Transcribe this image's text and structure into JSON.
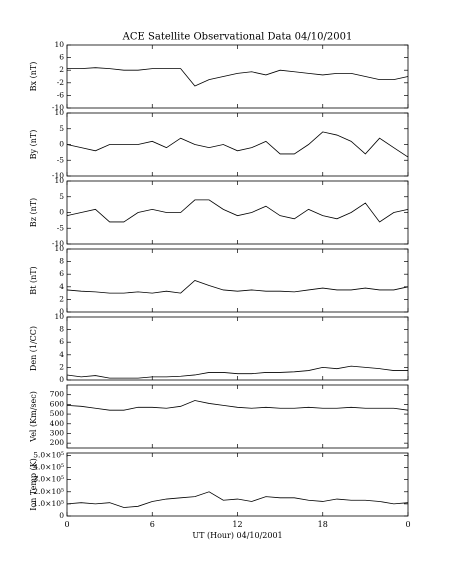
{
  "chart_data": [
    {
      "type": "line",
      "title": "ACE Satellite Observational Data   04/10/2001",
      "ylabel": "Bx (nT)",
      "xlim": [
        0,
        24
      ],
      "ylim": [
        -10,
        10
      ],
      "yticks": [
        -10,
        -6,
        -2,
        2,
        6,
        10
      ],
      "x": [
        0,
        1,
        2,
        3,
        4,
        5,
        6,
        7,
        8,
        9,
        10,
        11,
        12,
        13,
        14,
        15,
        16,
        17,
        18,
        19,
        20,
        21,
        22,
        23,
        24
      ],
      "values": [
        2.5,
        2.5,
        2.8,
        2.5,
        2,
        2,
        2.5,
        2.5,
        2.5,
        -3,
        -1,
        0,
        1,
        1.5,
        0.5,
        2,
        1.5,
        1,
        0.5,
        1,
        1,
        0,
        -1,
        -1,
        0
      ]
    },
    {
      "type": "line",
      "ylabel": "By (nT)",
      "xlim": [
        0,
        24
      ],
      "ylim": [
        -10,
        10
      ],
      "yticks": [
        -10,
        -5,
        0,
        5,
        10
      ],
      "x": [
        0,
        1,
        2,
        3,
        4,
        5,
        6,
        7,
        8,
        9,
        10,
        11,
        12,
        13,
        14,
        15,
        16,
        17,
        18,
        19,
        20,
        21,
        22,
        23,
        24
      ],
      "values": [
        0,
        -1,
        -2,
        0,
        0,
        0,
        1,
        -1,
        2,
        0,
        -1,
        0,
        -2,
        -1,
        1,
        -3,
        -3,
        0,
        4,
        3,
        1,
        -3,
        2,
        -1,
        -4
      ]
    },
    {
      "type": "line",
      "ylabel": "Bz (nT)",
      "xlim": [
        0,
        24
      ],
      "ylim": [
        -10,
        10
      ],
      "yticks": [
        -10,
        -5,
        0,
        5,
        10
      ],
      "x": [
        0,
        1,
        2,
        3,
        4,
        5,
        6,
        7,
        8,
        9,
        10,
        11,
        12,
        13,
        14,
        15,
        16,
        17,
        18,
        19,
        20,
        21,
        22,
        23,
        24
      ],
      "values": [
        -1,
        0,
        1,
        -3,
        -3,
        0,
        1,
        0,
        0,
        4,
        4,
        1,
        -1,
        0,
        2,
        -1,
        -2,
        1,
        -1,
        -2,
        0,
        3,
        -3,
        0,
        1
      ]
    },
    {
      "type": "line",
      "ylabel": "Bt (nT)",
      "xlim": [
        0,
        24
      ],
      "ylim": [
        0,
        10
      ],
      "yticks": [
        0,
        2,
        4,
        6,
        8,
        10
      ],
      "x": [
        0,
        1,
        2,
        3,
        4,
        5,
        6,
        7,
        8,
        9,
        10,
        11,
        12,
        13,
        14,
        15,
        16,
        17,
        18,
        19,
        20,
        21,
        22,
        23,
        24
      ],
      "values": [
        3.5,
        3.3,
        3.2,
        3,
        3,
        3.2,
        3,
        3.3,
        3,
        5,
        4.2,
        3.5,
        3.3,
        3.5,
        3.3,
        3.3,
        3.2,
        3.5,
        3.8,
        3.5,
        3.5,
        3.8,
        3.5,
        3.5,
        4
      ]
    },
    {
      "type": "line",
      "ylabel": "Den (1/CC)",
      "xlim": [
        0,
        24
      ],
      "ylim": [
        0,
        10
      ],
      "yticks": [
        0,
        2,
        4,
        6,
        8,
        10
      ],
      "x": [
        0,
        1,
        2,
        3,
        4,
        5,
        6,
        7,
        8,
        9,
        10,
        11,
        12,
        13,
        14,
        15,
        16,
        17,
        18,
        19,
        20,
        21,
        22,
        23,
        24
      ],
      "values": [
        0.8,
        0.5,
        0.7,
        0.3,
        0.3,
        0.3,
        0.5,
        0.5,
        0.6,
        0.8,
        1.2,
        1.2,
        1,
        1,
        1.2,
        1.2,
        1.3,
        1.5,
        2,
        1.8,
        2.2,
        2,
        1.8,
        1.5,
        1.5
      ]
    },
    {
      "type": "line",
      "ylabel": "Vel (Km/sec)",
      "xlim": [
        0,
        24
      ],
      "ylim": [
        150,
        800
      ],
      "yticks": [
        200,
        300,
        400,
        500,
        600,
        700
      ],
      "x": [
        0,
        1,
        2,
        3,
        4,
        5,
        6,
        7,
        8,
        9,
        10,
        11,
        12,
        13,
        14,
        15,
        16,
        17,
        18,
        19,
        20,
        21,
        22,
        23,
        24
      ],
      "values": [
        590,
        580,
        560,
        540,
        540,
        570,
        570,
        560,
        580,
        640,
        610,
        590,
        570,
        560,
        570,
        560,
        560,
        570,
        560,
        560,
        570,
        560,
        560,
        560,
        540
      ]
    },
    {
      "type": "line",
      "ylabel": "Ion Temp (K)",
      "xlabel": "UT (Hour)   04/10/2001",
      "xlim": [
        0,
        24
      ],
      "ylim": [
        0,
        520000
      ],
      "yticks": [
        0,
        {
          "value": 100000,
          "label": "1.0×10⁵"
        },
        {
          "value": 200000,
          "label": "2.0×10⁵"
        },
        {
          "value": 300000,
          "label": "3.0×10⁵"
        },
        {
          "value": 400000,
          "label": "4.0×10⁵"
        },
        {
          "value": 500000,
          "label": "5.0×10⁵"
        }
      ],
      "xticks": [
        0,
        6,
        12,
        18,
        {
          "value": 24,
          "label": "0"
        }
      ],
      "x": [
        0,
        1,
        2,
        3,
        4,
        5,
        6,
        7,
        8,
        9,
        10,
        11,
        12,
        13,
        14,
        15,
        16,
        17,
        18,
        19,
        20,
        21,
        22,
        23,
        24
      ],
      "values": [
        100000,
        110000,
        100000,
        110000,
        70000,
        80000,
        120000,
        140000,
        150000,
        160000,
        200000,
        130000,
        140000,
        120000,
        160000,
        150000,
        150000,
        130000,
        120000,
        140000,
        130000,
        130000,
        120000,
        100000,
        110000
      ]
    }
  ]
}
